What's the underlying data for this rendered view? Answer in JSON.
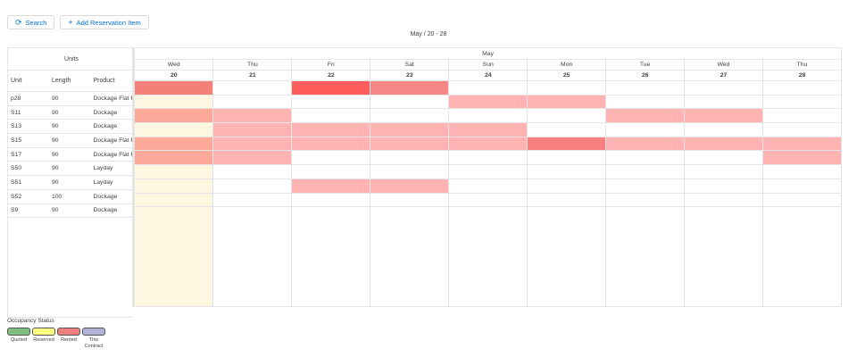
{
  "toolbar": {
    "search_label": "Search",
    "add_label": "Add Reservation Item",
    "search_icon": "refresh-icon",
    "add_icon": "plus-icon"
  },
  "range_label": "May / 20 - 28",
  "units_header": {
    "group": "Units",
    "unit": "Unit",
    "length": "Length",
    "product": "Product"
  },
  "calendar": {
    "month": "May",
    "days": [
      {
        "dow": "Wed",
        "date": "20"
      },
      {
        "dow": "Thu",
        "date": "21"
      },
      {
        "dow": "Fri",
        "date": "22"
      },
      {
        "dow": "Sat",
        "date": "23"
      },
      {
        "dow": "Sun",
        "date": "24"
      },
      {
        "dow": "Mon",
        "date": "25"
      },
      {
        "dow": "Tue",
        "date": "26"
      },
      {
        "dow": "Wed",
        "date": "27"
      },
      {
        "dow": "Thu",
        "date": "28"
      }
    ],
    "today_index": 0,
    "today_color": "#fdf7e2"
  },
  "units": [
    {
      "unit": "p28",
      "length": "90",
      "product": "Dockage Flat Rate",
      "cells": [
        "#f4807a",
        "",
        "#ff5c5c",
        "#f58787",
        "",
        "",
        "",
        "",
        ""
      ]
    },
    {
      "unit": "S11",
      "length": "90",
      "product": "Dockage",
      "cells": [
        "",
        "",
        "",
        "",
        "#ffb3b3",
        "#ffb3b3",
        "",
        "",
        ""
      ]
    },
    {
      "unit": "S13",
      "length": "90",
      "product": "Dockage",
      "cells": [
        "#fca99a",
        "#ffb3b3",
        "",
        "",
        "",
        "",
        "#ffb3b3",
        "#ffb3b3",
        ""
      ]
    },
    {
      "unit": "S15",
      "length": "90",
      "product": "Dockage Flat Rate",
      "cells": [
        "",
        "#ffb3b3",
        "#ffb3b3",
        "#ffb3b3",
        "#ffb3b3",
        "",
        "",
        "",
        ""
      ]
    },
    {
      "unit": "S17",
      "length": "90",
      "product": "Dockage Flat Rate",
      "cells": [
        "#fca99a",
        "#ffb3b3",
        "#ffb3b3",
        "#ffb3b3",
        "#ffb3b3",
        "#f88080",
        "#ffb3b3",
        "#ffb3b3",
        "#ffb3b3"
      ]
    },
    {
      "unit": "S50",
      "length": "90",
      "product": "Layday",
      "cells": [
        "#fca99a",
        "#ffb3b3",
        "",
        "",
        "",
        "",
        "",
        "",
        "#ffb3b3"
      ]
    },
    {
      "unit": "S51",
      "length": "90",
      "product": "Layday",
      "cells": [
        "",
        "",
        "",
        "",
        "",
        "",
        "",
        "",
        ""
      ]
    },
    {
      "unit": "S52",
      "length": "100",
      "product": "Dockage",
      "cells": [
        "",
        "",
        "#ffb3b3",
        "#ffb3b3",
        "",
        "",
        "",
        "",
        ""
      ]
    },
    {
      "unit": "S9",
      "length": "90",
      "product": "Dockage",
      "cells": [
        "",
        "",
        "",
        "",
        "",
        "",
        "",
        "",
        ""
      ]
    }
  ],
  "legend": {
    "title": "Occupancy Status",
    "items": [
      {
        "label": "Quoted",
        "color": "#7fbf7f"
      },
      {
        "label": "Reserved",
        "color": "#ffff80"
      },
      {
        "label": "Rented",
        "color": "#f08080"
      },
      {
        "label": "This Contract",
        "color": "#b3b3d9"
      }
    ]
  }
}
